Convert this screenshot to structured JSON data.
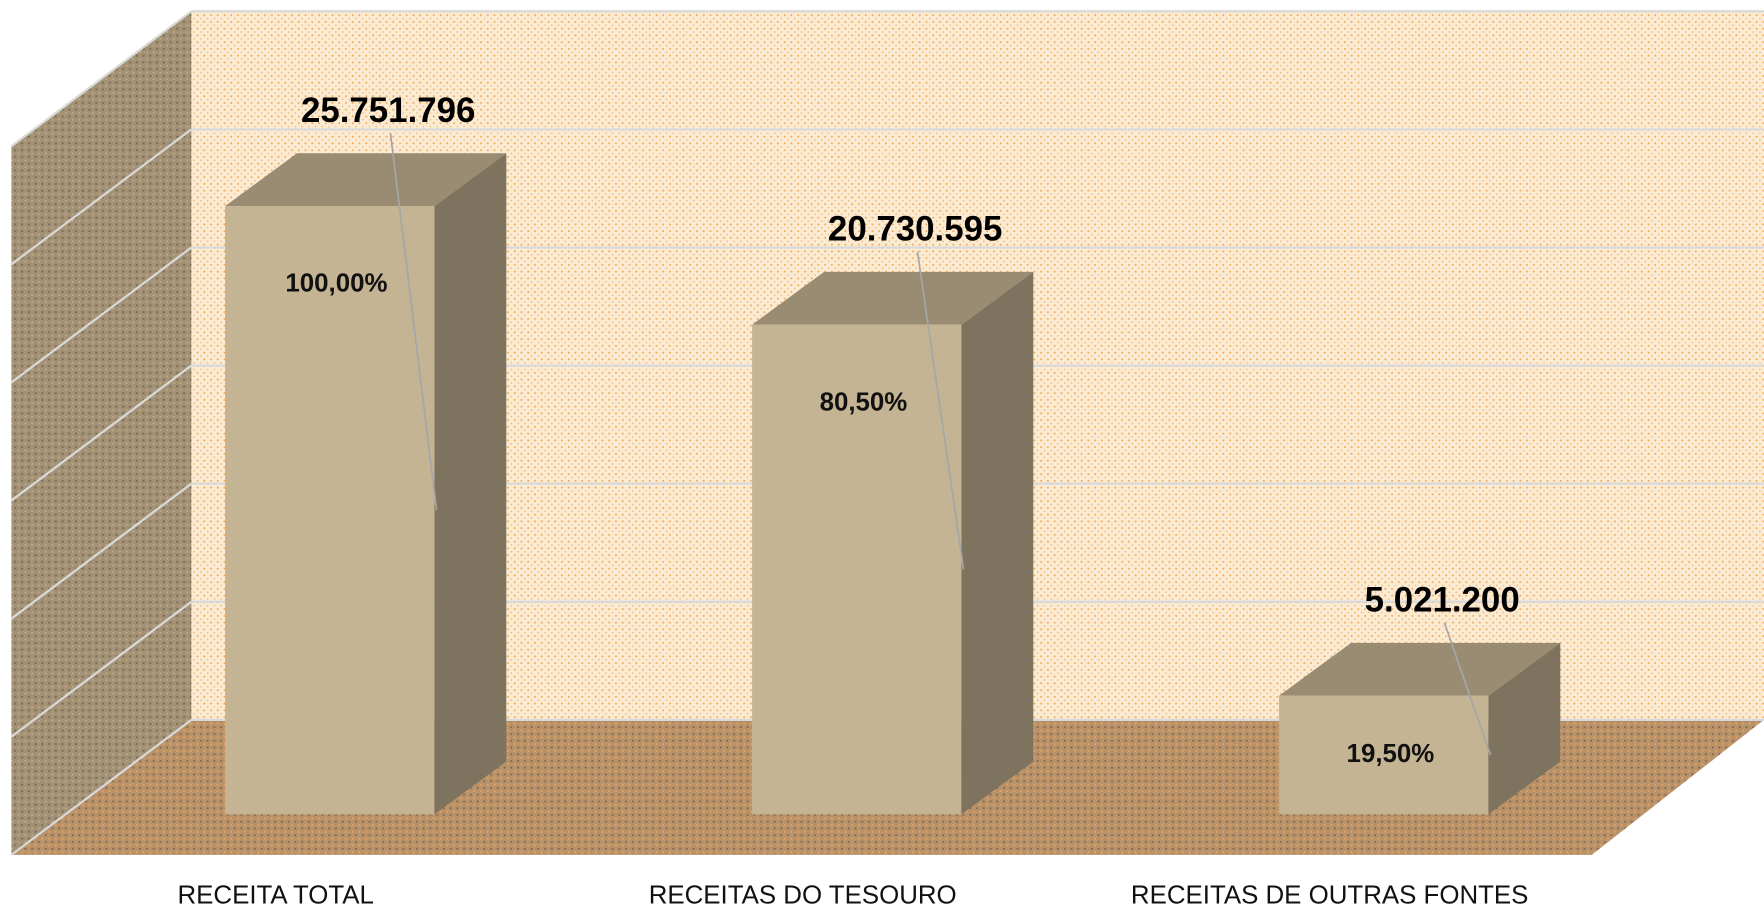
{
  "chart_data": {
    "type": "bar3d",
    "categories": [
      "RECEITA TOTAL",
      "RECEITAS DO TESOURO",
      "RECEITAS DE OUTRAS FONTES"
    ],
    "values": [
      25751796,
      20730595,
      5021200
    ],
    "value_labels": [
      "25.751.796",
      "20.730.595",
      "5.021.200"
    ],
    "percent_labels": [
      "100,00%",
      "80,50%",
      "19,50%"
    ],
    "color": "#c4b493",
    "ylim": [
      0,
      30000000
    ],
    "yticks": [
      0,
      5000000,
      10000000,
      15000000,
      20000000,
      25000000,
      30000000
    ],
    "grid": true
  }
}
